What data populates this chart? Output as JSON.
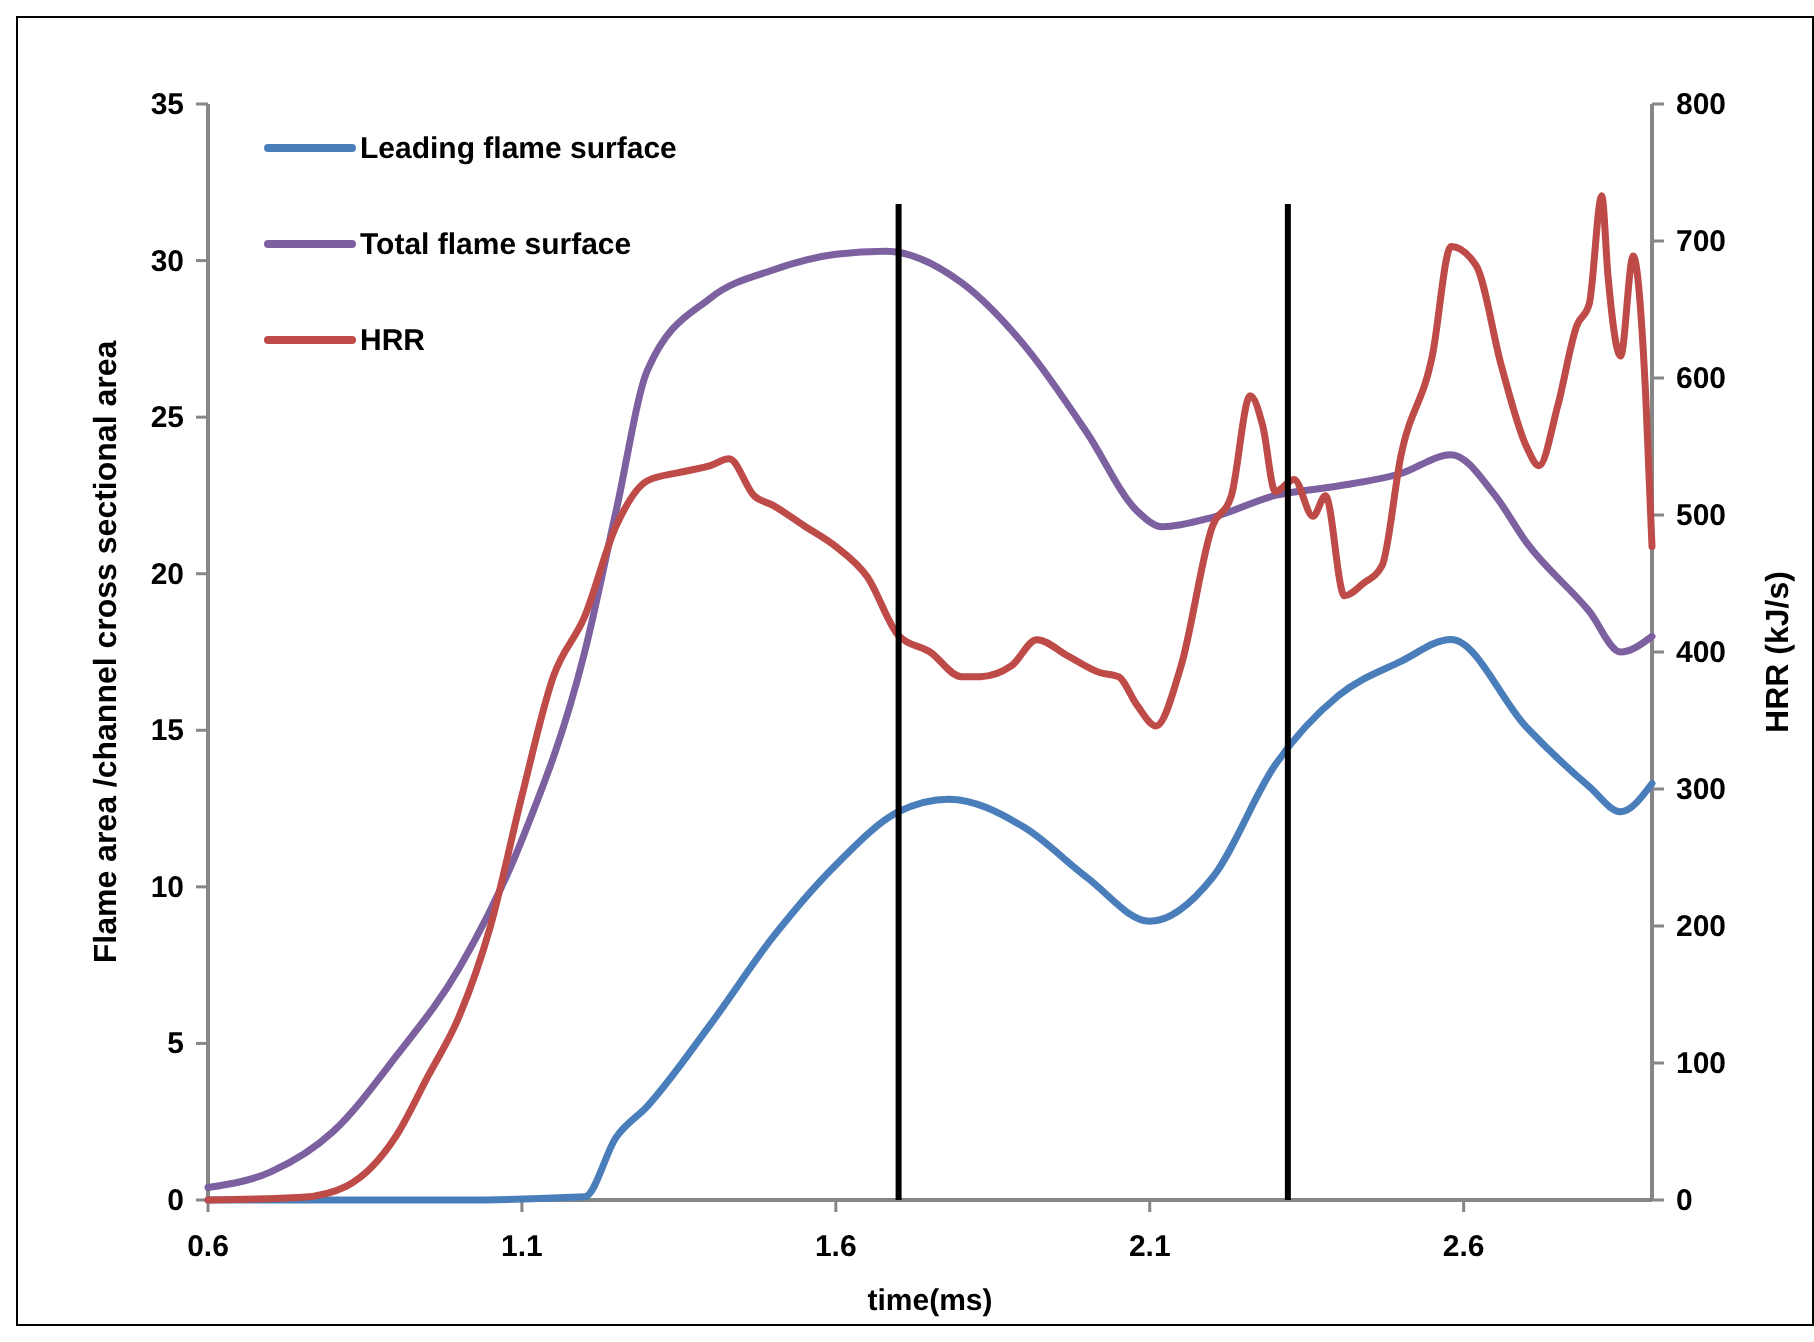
{
  "chart_data": {
    "type": "line",
    "xlabel": "time(ms)",
    "ylabel": "Flame area /channel cross sectional area",
    "y2label": "HRR (kJ/s)",
    "xlim": [
      0.6,
      2.9
    ],
    "xticks": [
      0.6,
      1.1,
      1.6,
      2.1,
      2.6
    ],
    "ylim": [
      0,
      35
    ],
    "yticks": [
      0,
      5,
      10,
      15,
      20,
      25,
      30,
      35
    ],
    "y2lim": [
      0,
      800
    ],
    "y2ticks": [
      0,
      100,
      200,
      300,
      400,
      500,
      600,
      700,
      800
    ],
    "grid": false,
    "legend": "top left",
    "marker": "none",
    "line_style": "solid",
    "series": [
      {
        "name": "Leading flame surface",
        "color": "#4a7ebb",
        "x": [
          0.6,
          1.0,
          1.2,
          1.25,
          1.3,
          1.4,
          1.5,
          1.6,
          1.7,
          1.78,
          1.9,
          2.0,
          2.1,
          2.2,
          2.3,
          2.4,
          2.5,
          2.58,
          2.7,
          2.8,
          2.85,
          2.9
        ],
        "values": [
          0,
          0,
          0.1,
          2.0,
          3.0,
          5.6,
          8.4,
          10.7,
          12.4,
          12.8,
          11.9,
          10.3,
          8.9,
          10.3,
          13.9,
          16.1,
          17.2,
          17.9,
          15.1,
          13.2,
          12.4,
          13.3
        ]
      },
      {
        "name": "Total flame surface",
        "color": "#7d60a0",
        "x": [
          0.6,
          0.7,
          0.8,
          0.9,
          1.0,
          1.1,
          1.2,
          1.25,
          1.3,
          1.4,
          1.5,
          1.6,
          1.68,
          1.8,
          1.9,
          2.0,
          2.08,
          2.12,
          2.2,
          2.3,
          2.4,
          2.5,
          2.58,
          2.65,
          2.7,
          2.8,
          2.85,
          2.9
        ],
        "values": [
          0.4,
          0.9,
          2.2,
          4.6,
          7.4,
          11.5,
          17.5,
          22,
          26.5,
          28.8,
          29.7,
          30.2,
          30.3,
          29.3,
          27.3,
          24.5,
          22,
          21.5,
          21.8,
          22.5,
          22.8,
          23.2,
          23.8,
          22.5,
          21,
          18.8,
          17.5,
          18.0
        ]
      },
      {
        "name": "HRR",
        "color": "#be4b48",
        "axis": "y2",
        "x": [
          0.6,
          0.75,
          0.82,
          0.9,
          0.95,
          1.0,
          1.05,
          1.1,
          1.15,
          1.2,
          1.25,
          1.3,
          1.35,
          1.4,
          1.43,
          1.47,
          1.5,
          1.55,
          1.6,
          1.65,
          1.7,
          1.75,
          1.8,
          1.83,
          1.88,
          1.92,
          1.97,
          2.02,
          2.05,
          2.08,
          2.11,
          2.15,
          2.2,
          2.23,
          2.26,
          2.28,
          2.3,
          2.33,
          2.36,
          2.38,
          2.41,
          2.44,
          2.47,
          2.5,
          2.55,
          2.58,
          2.62,
          2.66,
          2.7,
          2.72,
          2.75,
          2.78,
          2.8,
          2.82,
          2.83,
          2.85,
          2.87,
          2.89,
          2.9
        ],
        "values": [
          0,
          2,
          10,
          47,
          90,
          134,
          200,
          295,
          382,
          426,
          492,
          525,
          531,
          536,
          541,
          514,
          507,
          492,
          477,
          455,
          412,
          400,
          382,
          382,
          390,
          409,
          397,
          385,
          382,
          361,
          346,
          390,
          492,
          514,
          587,
          565,
          517,
          526,
          499,
          514,
          441,
          450,
          463,
          543,
          616,
          696,
          682,
          609,
          550,
          536,
          580,
          638,
          654,
          733,
          674,
          616,
          689,
          587,
          477
        ]
      }
    ],
    "ref_lines": [
      {
        "axis": "x",
        "value": 1.7,
        "color": "#000000"
      },
      {
        "axis": "x",
        "value": 2.32,
        "color": "#000000"
      }
    ]
  }
}
